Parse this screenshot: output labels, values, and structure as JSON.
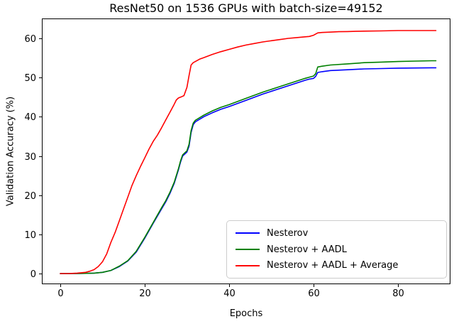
{
  "chart_data": {
    "type": "line",
    "title": "ResNet50 on 1536 GPUs with batch-size=49152",
    "xlabel": "Epochs",
    "ylabel": "Validation Accuracy (%)",
    "xlim": [
      -4.37,
      92.44
    ],
    "ylim": [
      -2.72,
      65.08
    ],
    "x_ticks": [
      0,
      20,
      40,
      60,
      80
    ],
    "y_ticks": [
      0,
      10,
      20,
      30,
      40,
      50,
      60
    ],
    "grid": false,
    "legend_position": "lower right",
    "series": [
      {
        "name": "Nesterov",
        "color": "#0000ff",
        "x": [
          0,
          4,
          8,
          10,
          12,
          14,
          16,
          18,
          20,
          22,
          24,
          25,
          26,
          27,
          28,
          28.5,
          29,
          29.5,
          30,
          30.5,
          31,
          31.5,
          32,
          34,
          36,
          38,
          40,
          44,
          48,
          52,
          54,
          56,
          58,
          59,
          60,
          60.5,
          61,
          62,
          64,
          68,
          72,
          76,
          80,
          84,
          88,
          89
        ],
        "y": [
          0,
          0,
          0.1,
          0.3,
          0.8,
          1.8,
          3.2,
          5.5,
          9,
          12.8,
          16.5,
          18.3,
          20.5,
          23,
          26.5,
          28.5,
          30,
          30.5,
          31,
          32.5,
          36,
          38,
          38.7,
          40,
          41,
          41.9,
          42.6,
          44.2,
          45.8,
          47.2,
          47.9,
          48.6,
          49.3,
          49.6,
          49.8,
          50.3,
          51.3,
          51.5,
          51.8,
          52,
          52.2,
          52.3,
          52.4,
          52.45,
          52.5,
          52.5
        ]
      },
      {
        "name": "Nesterov + AADL",
        "color": "#008000",
        "x": [
          0,
          4,
          8,
          10,
          12,
          14,
          16,
          18,
          20,
          22,
          24,
          25,
          26,
          27,
          28,
          28.5,
          29,
          29.5,
          30,
          30.5,
          31,
          31.5,
          32,
          34,
          36,
          38,
          40,
          44,
          48,
          52,
          54,
          56,
          58,
          59,
          60,
          60.5,
          61,
          62,
          64,
          68,
          72,
          76,
          80,
          84,
          88,
          89
        ],
        "y": [
          0,
          0,
          0.1,
          0.3,
          0.8,
          1.9,
          3.3,
          5.7,
          9.2,
          13,
          16.8,
          18.6,
          20.8,
          23.3,
          26.8,
          28.8,
          30.3,
          30.8,
          31.3,
          33,
          36.5,
          38.4,
          39.1,
          40.4,
          41.5,
          42.4,
          43.1,
          44.7,
          46.3,
          47.7,
          48.4,
          49.1,
          49.8,
          50.1,
          50.4,
          51,
          52.7,
          52.9,
          53.2,
          53.5,
          53.8,
          53.95,
          54.1,
          54.2,
          54.3,
          54.3
        ]
      },
      {
        "name": "Nesterov + AADL + Average",
        "color": "#ff0000",
        "x": [
          0,
          2,
          4,
          6,
          7,
          8,
          9,
          10,
          11,
          12,
          13,
          14,
          15,
          16,
          17,
          18,
          19,
          20,
          21,
          22,
          23,
          24,
          25,
          26,
          27,
          27.5,
          28,
          28.7,
          29.3,
          30,
          30.5,
          31,
          31.5,
          32,
          33,
          34,
          36,
          38,
          40,
          42,
          44,
          46,
          48,
          50,
          52,
          54,
          56,
          58,
          59,
          60,
          61,
          62,
          64,
          66,
          68,
          70,
          72,
          76,
          80,
          84,
          88,
          89
        ],
        "y": [
          0,
          0,
          0.1,
          0.3,
          0.6,
          1,
          1.8,
          3,
          5,
          8,
          10.5,
          13.5,
          16.5,
          19.5,
          22.5,
          25,
          27.3,
          29.5,
          31.7,
          33.7,
          35.3,
          37.2,
          39.2,
          41.2,
          43.2,
          44.3,
          44.8,
          45.1,
          45.4,
          47.5,
          50.5,
          53.2,
          53.8,
          54.1,
          54.7,
          55.1,
          55.9,
          56.6,
          57.2,
          57.8,
          58.3,
          58.7,
          59.1,
          59.4,
          59.7,
          60,
          60.2,
          60.4,
          60.5,
          60.8,
          61.4,
          61.5,
          61.6,
          61.7,
          61.75,
          61.8,
          61.85,
          61.9,
          62,
          62,
          62,
          62
        ]
      }
    ]
  }
}
